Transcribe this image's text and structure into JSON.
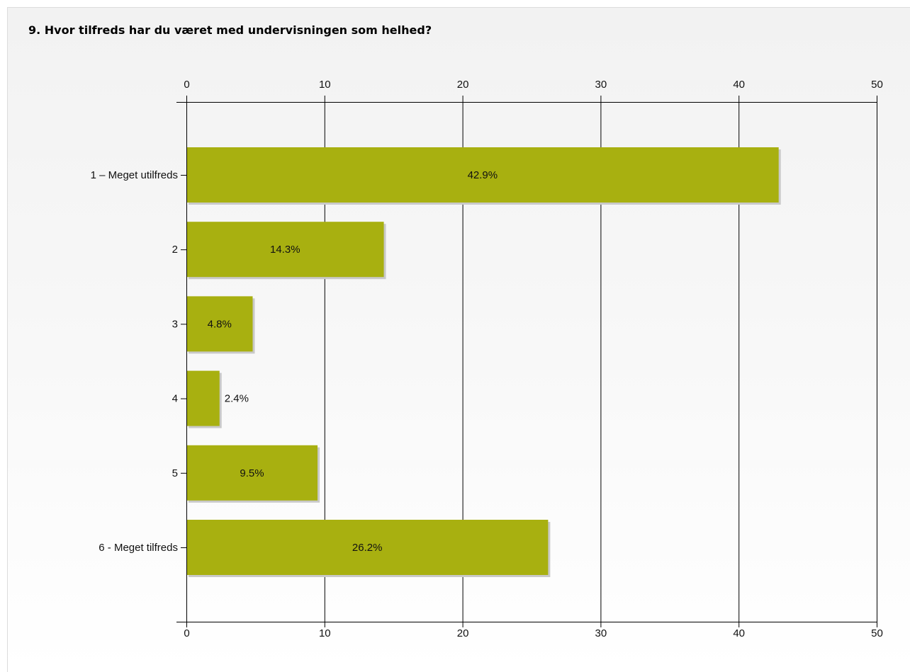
{
  "chart_data": {
    "type": "bar",
    "orientation": "horizontal",
    "title": "9. Hvor tilfreds har du været med undervisningen som helhed?",
    "categories": [
      "1 – Meget utilfreds",
      "2",
      "3",
      "4",
      "5",
      "6 - Meget tilfreds"
    ],
    "values": [
      42.9,
      14.3,
      4.8,
      2.4,
      9.5,
      26.2
    ],
    "data_labels": [
      "42.9%",
      "14.3%",
      "4.8%",
      "2.4%",
      "9.5%",
      "26.2%"
    ],
    "xlim": [
      0,
      50
    ],
    "x_ticks": [
      0,
      10,
      20,
      30,
      40,
      50
    ],
    "x_tick_labels": [
      "0",
      "10",
      "20",
      "30",
      "40",
      "50"
    ],
    "x_axis_position": "top-and-bottom",
    "grid": true,
    "bar_color": "#a8b010",
    "bar_shadow_color": "#c9c9c9",
    "grid_color": "#000000"
  }
}
